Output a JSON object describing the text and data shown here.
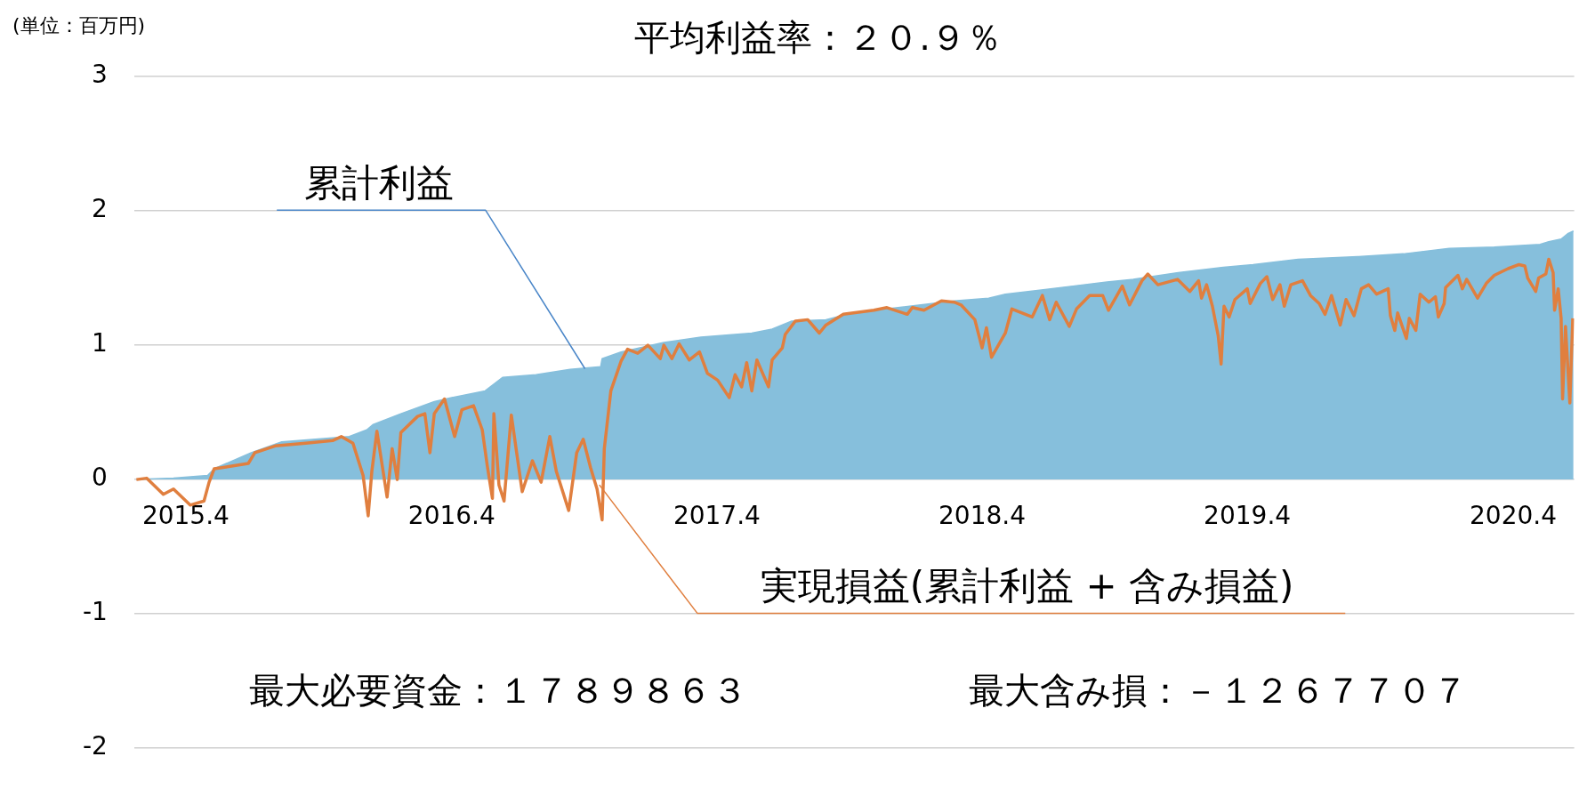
{
  "chart_data": {
    "type": "line",
    "title": "平均利益率：２０.９％",
    "annotations": [
      "(単位：百万円)",
      "最大必要資金：１７８９８６３",
      "最大含み損：－１２６７７０７"
    ],
    "xlim": [
      "2015-01-20",
      "2020-06-24"
    ],
    "xticks": [
      {
        "value": "2015-04-01",
        "label": "2015.4"
      },
      {
        "value": "2016-04-01",
        "label": "2016.4"
      },
      {
        "value": "2017-04-01",
        "label": "2017.4"
      },
      {
        "value": "2018-04-01",
        "label": "2018.4"
      },
      {
        "value": "2019-04-01",
        "label": "2019.4"
      },
      {
        "value": "2020-04-01",
        "label": "2020.4"
      }
    ],
    "ylim": [
      -2,
      3
    ],
    "yticks": [
      -2,
      -1,
      0,
      1,
      2,
      3
    ],
    "grid": "y",
    "legend": false,
    "series": [
      {
        "name": "累計利益",
        "type": "area",
        "color": "#86bfdc",
        "x": [
          "2015-01-23",
          "2015-03-15",
          "2015-05-01",
          "2015-05-10",
          "2015-06-30",
          "2015-08-11",
          "2015-11-12",
          "2015-12-06",
          "2015-12-15",
          "2016-01-22",
          "2016-03-08",
          "2016-04-01",
          "2016-05-17",
          "2016-06-10",
          "2016-07-26",
          "2016-09-11",
          "2016-10-23",
          "2016-10-25",
          "2016-11-20",
          "2017-01-18",
          "2017-03-10",
          "2017-05-19",
          "2017-06-16",
          "2017-07-13",
          "2017-08-29",
          "2017-10-05",
          "2018-02-22",
          "2018-04-10",
          "2018-05-03",
          "2018-06-19",
          "2018-08-04",
          "2018-09-20",
          "2018-10-26",
          "2018-12-27",
          "2019-02-27",
          "2019-04-09",
          "2019-06-10",
          "2019-09-01",
          "2019-11-02",
          "2020-01-04",
          "2020-03-06",
          "2020-05-08",
          "2020-05-20",
          "2020-06-06",
          "2020-06-15",
          "2020-06-23"
        ],
        "values": [
          0,
          0.01,
          0.03,
          0.08,
          0.2,
          0.28,
          0.32,
          0.37,
          0.41,
          0.49,
          0.58,
          0.61,
          0.66,
          0.76,
          0.78,
          0.82,
          0.84,
          0.9,
          0.95,
          1.02,
          1.06,
          1.09,
          1.12,
          1.18,
          1.19,
          1.24,
          1.33,
          1.35,
          1.38,
          1.41,
          1.44,
          1.47,
          1.49,
          1.54,
          1.58,
          1.6,
          1.64,
          1.66,
          1.68,
          1.72,
          1.73,
          1.75,
          1.77,
          1.79,
          1.83,
          1.85
        ]
      },
      {
        "name": "実現損益(累計利益 + 含み損益)",
        "color": "#e07f3f",
        "x": [
          "2015-01-23",
          "2015-02-06",
          "2015-03-01",
          "2015-03-15",
          "2015-04-07",
          "2015-04-26",
          "2015-05-03",
          "2015-05-10",
          "2015-06-03",
          "2015-06-26",
          "2015-07-05",
          "2015-08-02",
          "2015-09-13",
          "2015-10-20",
          "2015-11-01",
          "2015-11-17",
          "2015-12-01",
          "2015-12-08",
          "2015-12-13",
          "2015-12-20",
          "2016-01-03",
          "2016-01-10",
          "2016-01-17",
          "2016-01-22",
          "2016-02-14",
          "2016-02-24",
          "2016-03-02",
          "2016-03-08",
          "2016-03-22",
          "2016-04-05",
          "2016-04-15",
          "2016-05-01",
          "2016-05-13",
          "2016-05-20",
          "2016-05-27",
          "2016-05-29",
          "2016-06-05",
          "2016-06-12",
          "2016-06-22",
          "2016-07-07",
          "2016-07-21",
          "2016-08-02",
          "2016-08-14",
          "2016-08-23",
          "2016-09-09",
          "2016-09-20",
          "2016-09-29",
          "2016-10-09",
          "2016-10-18",
          "2016-10-25",
          "2016-10-28",
          "2016-11-06",
          "2016-11-20",
          "2016-11-29",
          "2016-12-13",
          "2016-12-27",
          "2017-01-13",
          "2017-01-18",
          "2017-01-29",
          "2017-02-08",
          "2017-02-22",
          "2017-03-08",
          "2017-03-19",
          "2017-04-02",
          "2017-04-18",
          "2017-04-26",
          "2017-05-05",
          "2017-05-12",
          "2017-05-19",
          "2017-05-26",
          "2017-06-11",
          "2017-06-16",
          "2017-06-30",
          "2017-07-04",
          "2017-07-18",
          "2017-08-04",
          "2017-08-20",
          "2017-08-29",
          "2017-09-22",
          "2017-11-03",
          "2017-11-21",
          "2017-12-19",
          "2017-12-26",
          "2018-01-11",
          "2018-02-04",
          "2018-02-22",
          "2018-03-03",
          "2018-03-22",
          "2018-04-01",
          "2018-04-07",
          "2018-04-14",
          "2018-05-03",
          "2018-05-12",
          "2018-06-09",
          "2018-06-23",
          "2018-07-03",
          "2018-07-12",
          "2018-07-30",
          "2018-08-09",
          "2018-08-27",
          "2018-09-14",
          "2018-09-22",
          "2018-10-11",
          "2018-10-21",
          "2018-11-07",
          "2018-11-15",
          "2018-11-29",
          "2018-12-26",
          "2019-01-12",
          "2019-01-24",
          "2019-01-28",
          "2019-02-04",
          "2019-02-12",
          "2019-02-20",
          "2019-02-24",
          "2019-02-28",
          "2019-03-07",
          "2019-03-15",
          "2019-04-01",
          "2019-04-05",
          "2019-04-19",
          "2019-04-28",
          "2019-05-06",
          "2019-05-16",
          "2019-05-22",
          "2019-05-31",
          "2019-06-16",
          "2019-06-27",
          "2019-07-09",
          "2019-07-17",
          "2019-07-26",
          "2019-08-07",
          "2019-08-15",
          "2019-08-26",
          "2019-09-05",
          "2019-09-15",
          "2019-09-26",
          "2019-10-12",
          "2019-10-15",
          "2019-10-21",
          "2019-10-25",
          "2019-11-06",
          "2019-11-10",
          "2019-11-19",
          "2019-11-25",
          "2019-12-07",
          "2019-12-16",
          "2019-12-20",
          "2019-12-28",
          "2019-12-30",
          "2020-01-16",
          "2020-01-22",
          "2020-01-28",
          "2020-02-12",
          "2020-02-24",
          "2020-03-06",
          "2020-03-25",
          "2020-04-09",
          "2020-04-17",
          "2020-04-21",
          "2020-05-02",
          "2020-05-06",
          "2020-05-16",
          "2020-05-20",
          "2020-05-26",
          "2020-05-28",
          "2020-06-02",
          "2020-06-06",
          "2020-06-08",
          "2020-06-12",
          "2020-06-18",
          "2020-06-22"
        ],
        "values": [
          0,
          0.01,
          -0.11,
          -0.07,
          -0.19,
          -0.16,
          -0.02,
          0.08,
          0.1,
          0.12,
          0.2,
          0.25,
          0.27,
          0.29,
          0.32,
          0.27,
          0.03,
          -0.27,
          0.06,
          0.36,
          -0.13,
          0.23,
          0,
          0.35,
          0.47,
          0.49,
          0.2,
          0.49,
          0.6,
          0.32,
          0.52,
          0.55,
          0.37,
          0.1,
          -0.14,
          0.49,
          -0.04,
          -0.16,
          0.48,
          -0.09,
          0.14,
          -0.02,
          0.32,
          0.06,
          -0.23,
          0.2,
          0.3,
          0.09,
          -0.07,
          -0.3,
          0.23,
          0.66,
          0.88,
          0.97,
          0.94,
          1.0,
          0.9,
          1.0,
          0.9,
          1.01,
          0.89,
          0.95,
          0.79,
          0.74,
          0.61,
          0.78,
          0.69,
          0.87,
          0.66,
          0.89,
          0.69,
          0.89,
          0.98,
          1.08,
          1.18,
          1.19,
          1.09,
          1.15,
          1.23,
          1.26,
          1.28,
          1.23,
          1.28,
          1.26,
          1.33,
          1.32,
          1.3,
          1.19,
          0.98,
          1.13,
          0.91,
          1.09,
          1.27,
          1.21,
          1.37,
          1.19,
          1.32,
          1.14,
          1.27,
          1.37,
          1.37,
          1.26,
          1.44,
          1.3,
          1.48,
          1.53,
          1.45,
          1.49,
          1.4,
          1.48,
          1.35,
          1.45,
          1.29,
          1.07,
          0.86,
          1.29,
          1.21,
          1.34,
          1.42,
          1.31,
          1.46,
          1.51,
          1.34,
          1.45,
          1.29,
          1.45,
          1.48,
          1.37,
          1.31,
          1.23,
          1.37,
          1.15,
          1.34,
          1.22,
          1.42,
          1.45,
          1.38,
          1.42,
          1.22,
          1.11,
          1.24,
          1.05,
          1.2,
          1.11,
          1.38,
          1.32,
          1.36,
          1.21,
          1.31,
          1.43,
          1.52,
          1.42,
          1.49,
          1.35,
          1.46,
          1.52,
          1.57,
          1.6,
          1.59,
          1.5,
          1.4,
          1.5,
          1.53,
          1.64,
          1.54,
          1.26,
          1.42,
          1.2,
          0.6,
          1.14,
          0.57,
          1.2
        ]
      }
    ]
  }
}
